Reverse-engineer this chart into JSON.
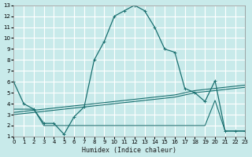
{
  "xlabel": "Humidex (Indice chaleur)",
  "xlim": [
    0,
    23
  ],
  "ylim": [
    1,
    13
  ],
  "xticks": [
    0,
    1,
    2,
    3,
    4,
    5,
    6,
    7,
    8,
    9,
    10,
    11,
    12,
    13,
    14,
    15,
    16,
    17,
    18,
    19,
    20,
    21,
    22,
    23
  ],
  "yticks": [
    1,
    2,
    3,
    4,
    5,
    6,
    7,
    8,
    9,
    10,
    11,
    12,
    13
  ],
  "bg_color": "#c8eaea",
  "grid_color": "#ffffff",
  "line_color": "#1a7070",
  "lines": [
    {
      "x": [
        0,
        1,
        2,
        3,
        4,
        5,
        6,
        7,
        8,
        9,
        10,
        11,
        12,
        13,
        14,
        15,
        16,
        17,
        18,
        19,
        20,
        21,
        22,
        23
      ],
      "y": [
        6,
        4,
        3.5,
        2.2,
        2.2,
        1.2,
        2.8,
        3.7,
        8.0,
        9.7,
        12.0,
        12.5,
        13.0,
        12.5,
        11.0,
        9.0,
        8.7,
        5.4,
        5.0,
        4.2,
        6.1,
        1.5,
        1.5,
        1.5
      ],
      "markers": true
    },
    {
      "x": [
        0,
        1,
        2,
        3,
        4,
        5,
        6,
        7,
        8,
        9,
        10,
        11,
        12,
        13,
        14,
        15,
        16,
        17,
        18,
        19,
        20,
        21,
        22,
        23
      ],
      "y": [
        3.2,
        3.3,
        3.4,
        3.5,
        3.6,
        3.7,
        3.8,
        3.9,
        4.0,
        4.1,
        4.2,
        4.3,
        4.4,
        4.5,
        4.6,
        4.7,
        4.8,
        5.0,
        5.2,
        5.3,
        5.4,
        5.5,
        5.6,
        5.7
      ],
      "markers": false
    },
    {
      "x": [
        0,
        1,
        2,
        3,
        4,
        5,
        6,
        7,
        8,
        9,
        10,
        11,
        12,
        13,
        14,
        15,
        16,
        17,
        18,
        19,
        20,
        21,
        22,
        23
      ],
      "y": [
        3.0,
        3.1,
        3.2,
        3.3,
        3.4,
        3.5,
        3.6,
        3.7,
        3.8,
        3.9,
        4.0,
        4.1,
        4.2,
        4.3,
        4.4,
        4.5,
        4.6,
        4.8,
        5.0,
        5.1,
        5.2,
        5.3,
        5.4,
        5.5
      ],
      "markers": false
    },
    {
      "x": [
        0,
        1,
        2,
        3,
        4,
        5,
        6,
        7,
        8,
        9,
        10,
        11,
        12,
        13,
        14,
        15,
        16,
        17,
        18,
        19,
        20,
        21,
        22,
        23
      ],
      "y": [
        3.5,
        3.5,
        3.5,
        2.0,
        2.0,
        2.0,
        2.0,
        2.0,
        2.0,
        2.0,
        2.0,
        2.0,
        2.0,
        2.0,
        2.0,
        2.0,
        2.0,
        2.0,
        2.0,
        2.0,
        4.3,
        1.5,
        1.5,
        1.5
      ],
      "markers": false
    }
  ]
}
